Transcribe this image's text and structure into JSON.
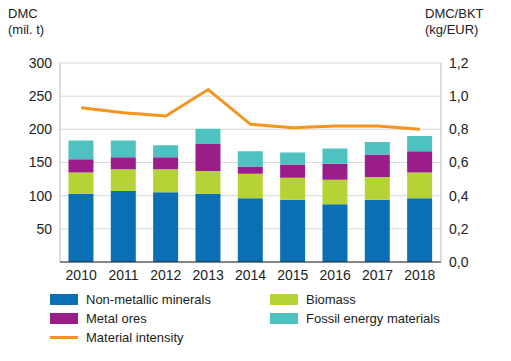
{
  "chart_data": {
    "type": "bar",
    "stacked": true,
    "grid": true,
    "y_label": "DMC\n(mil. t)",
    "y2_label": "DMC/BKT\n(kg/EUR)",
    "categories": [
      "2010",
      "2011",
      "2012",
      "2013",
      "2014",
      "2015",
      "2016",
      "2017",
      "2018"
    ],
    "ylim": [
      0,
      300
    ],
    "yticks": [
      0,
      50,
      100,
      150,
      200,
      250,
      300
    ],
    "y2lim": [
      0,
      1.2
    ],
    "y2ticks": [
      {
        "value": 0,
        "label": "0,0"
      },
      {
        "value": 0.2,
        "label": "0,2"
      },
      {
        "value": 0.4,
        "label": "0,4"
      },
      {
        "value": 0.6,
        "label": "0,6"
      },
      {
        "value": 0.8,
        "label": "0,8"
      },
      {
        "value": 1.0,
        "label": "1,0"
      },
      {
        "value": 1.2,
        "label": "1,2"
      }
    ],
    "series": [
      {
        "name": "Non-metallic minerals",
        "type": "bar",
        "color": "#0a6fb5",
        "values": [
          103,
          107,
          105,
          103,
          96,
          94,
          87,
          94,
          96
        ]
      },
      {
        "name": "Biomass",
        "type": "bar",
        "color": "#b5d334",
        "values": [
          32,
          33,
          35,
          34,
          37,
          33,
          37,
          34,
          39
        ]
      },
      {
        "name": "Metal ores",
        "type": "bar",
        "color": "#9b1d8a",
        "values": [
          20,
          18,
          18,
          41,
          11,
          20,
          24,
          34,
          32
        ]
      },
      {
        "name": "Fossil energy materials",
        "type": "bar",
        "color": "#4ec2c0",
        "values": [
          28,
          25,
          18,
          23,
          23,
          18,
          23,
          19,
          23
        ]
      },
      {
        "name": "Material intensity",
        "type": "line",
        "axis": "y2",
        "color": "#f7941d",
        "values": [
          0.93,
          0.9,
          0.88,
          1.04,
          0.83,
          0.81,
          0.82,
          0.82,
          0.8
        ]
      }
    ]
  }
}
